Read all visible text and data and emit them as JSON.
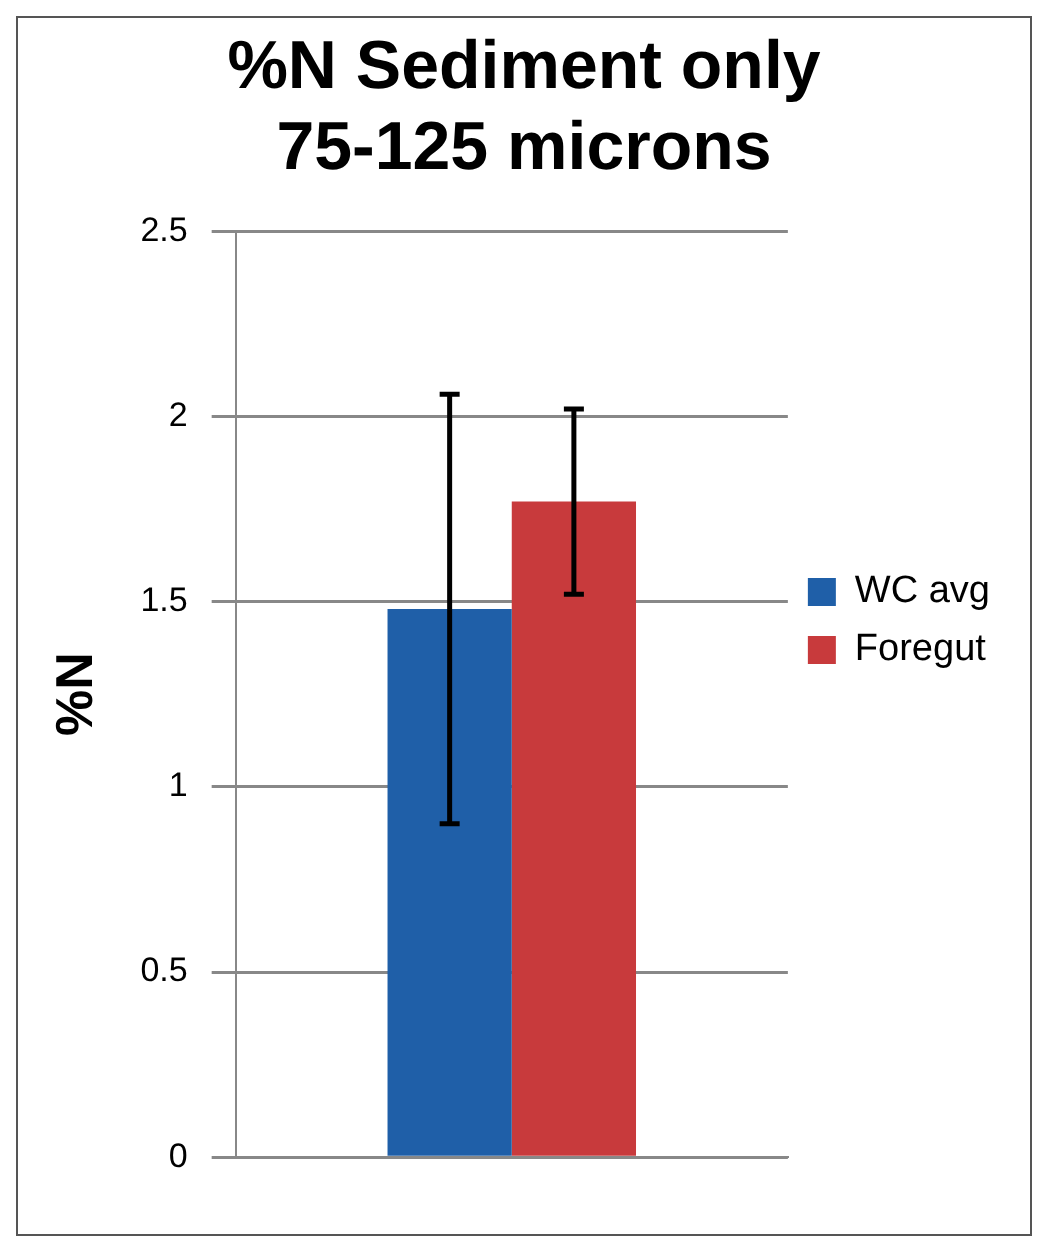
{
  "chart_data": {
    "type": "bar",
    "title": [
      "%N Sediment only",
      "75-125 microns"
    ],
    "ylabel": "%N",
    "categories": [
      null
    ],
    "series": [
      {
        "name": "WC avg",
        "color": "#1f5fa8",
        "values": [
          1.48
        ],
        "errors": [
          0.58
        ]
      },
      {
        "name": "Foregut",
        "color": "#c83a3c",
        "values": [
          1.77
        ],
        "errors": [
          0.25
        ]
      }
    ],
    "ylim": [
      0,
      2.5
    ],
    "yticks": [
      0,
      0.5,
      1,
      1.5,
      2,
      2.5
    ],
    "grid": "y",
    "legend": "right"
  }
}
